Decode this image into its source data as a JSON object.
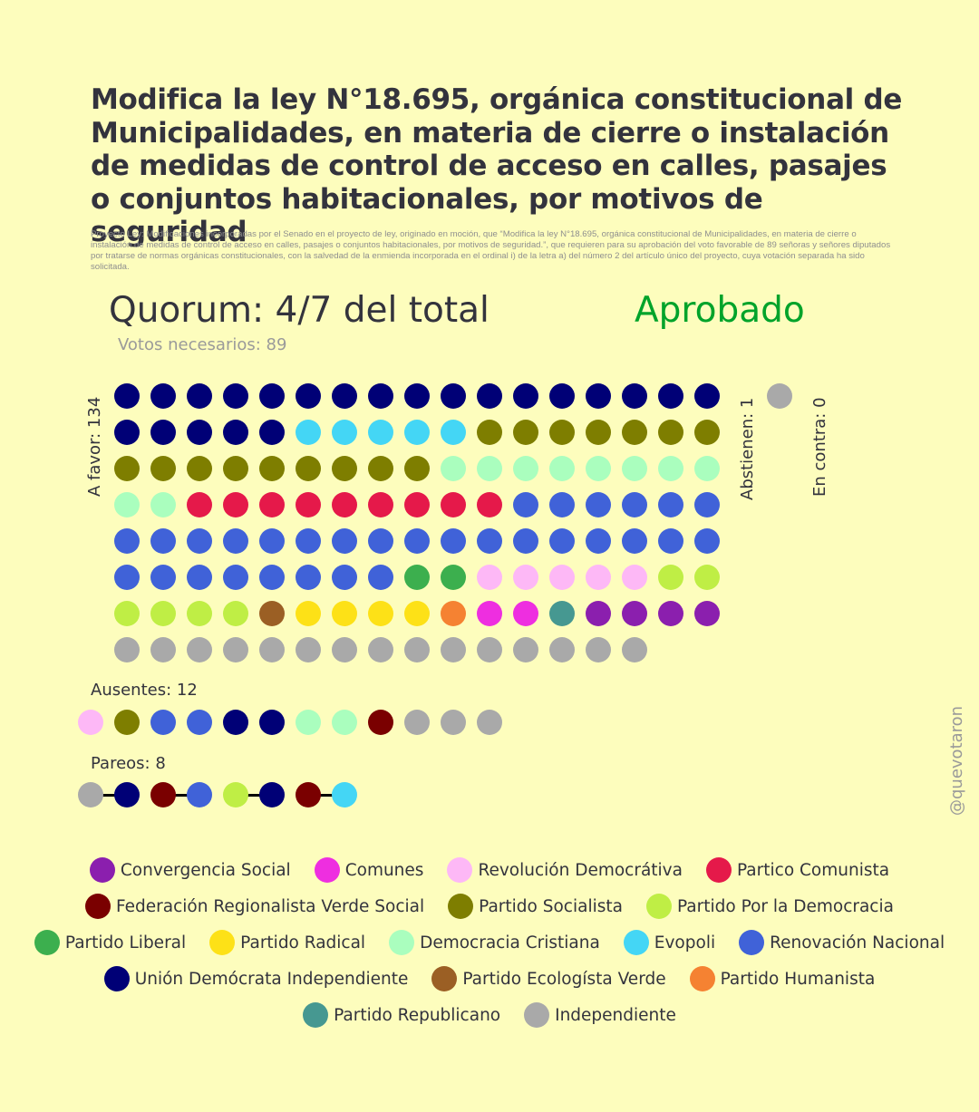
{
  "title": "Modifica la ley N°18.695, orgánica constitucional de Municipalidades, en materia de cierre o instalación de medidas de control de acceso en calles, pasajes o conjuntos habitacionales, por motivos de seguridad",
  "description": "Proyecto Ley: Modificaciones incorporadas por el Senado en el proyecto de ley, originado en moción, que “Modifica la ley N°18.695, orgánica constitucional de Municipalidades, en materia de cierre o instalación de medidas de control de acceso en calles, pasajes o conjuntos habitacionales, por motivos de seguridad.”, que requieren para su aprobación del voto favorable de 89 señoras y señores diputados por tratarse de normas orgánicas constitucionales, con la salvedad de la enmienda incorporada en el ordinal i) de la letra a) del número 2 del artículo único del proyecto, cuya votación separada ha sido solicitada.",
  "quorum": "Quorum: 4/7 del total",
  "result": "Aprobado",
  "result_color": "#00a32a",
  "needed": "Votos necesarios: 89",
  "labels": {
    "favor": "A favor: 134",
    "abstain": "Abstienen: 1",
    "against": "En contra: 0",
    "absent": "Ausentes: 12",
    "pairs": "Pareos: 8"
  },
  "watermark": "@quevotaron",
  "colors": {
    "Convergencia Social": "#8b1fae",
    "Comunes": "#ee2ee0",
    "Revolución Democrátiva": "#fdb8f6",
    "Partico Comunista": "#e5194a",
    "Federación Regionalista Verde Social": "#7a0000",
    "Partido Socialista": "#7e7e00",
    "Partido Por la Democracia": "#bfee45",
    "Partido Liberal": "#3caf4e",
    "Partido Radical": "#fde117",
    "Democracia Cristiana": "#aafebe",
    "Evopoli": "#44d6f5",
    "Renovación Nacional": "#4062d8",
    "Unión Demócrata Independiente": "#000076",
    "Partido Ecologísta Verde": "#9b5f24",
    "Partido Humanista": "#f58232",
    "Partido Republicano": "#469891",
    "Independiente": "#a9a9a9"
  },
  "votes": {
    "favor": [
      [
        "Unión Demócrata Independiente",
        22
      ],
      [
        "Evopoli",
        5
      ],
      [
        "Partido Socialista",
        16
      ],
      [
        "Democracia Cristiana",
        10
      ],
      [
        "Partico Comunista",
        9
      ],
      [
        "Renovación Nacional",
        31
      ],
      [
        "Partido Liberal",
        2
      ],
      [
        "Revolución Democrátiva",
        5
      ],
      [
        "Partido Por la Democracia",
        6
      ],
      [
        "Partido Ecologísta Verde",
        1
      ],
      [
        "Partido Radical",
        4
      ],
      [
        "Partido Humanista",
        1
      ],
      [
        "Comunes",
        2
      ],
      [
        "Partido Republicano",
        1
      ],
      [
        "Convergencia Social",
        4
      ],
      [
        "Independiente",
        15
      ]
    ],
    "abstain": [
      [
        "Independiente",
        1
      ]
    ],
    "against": [],
    "absent": [
      "Revolución Democrátiva",
      "Partido Socialista",
      "Renovación Nacional",
      "Renovación Nacional",
      "Unión Demócrata Independiente",
      "Unión Demócrata Independiente",
      "Democracia Cristiana",
      "Democracia Cristiana",
      "Federación Regionalista Verde Social",
      "Independiente",
      "Independiente",
      "Independiente"
    ],
    "pairs": [
      [
        "Independiente",
        "Unión Demócrata Independiente"
      ],
      [
        "Federación Regionalista Verde Social",
        "Renovación Nacional"
      ],
      [
        "Partido Por la Democracia",
        "Unión Demócrata Independiente"
      ],
      [
        "Federación Regionalista Verde Social",
        "Evopoli"
      ]
    ]
  },
  "legend": [
    [
      "Convergencia Social",
      "Comunes",
      "Revolución Democrátiva",
      "Partico Comunista"
    ],
    [
      "Federación Regionalista Verde Social",
      "Partido Socialista",
      "Partido Por la Democracia"
    ],
    [
      "Partido Liberal",
      "Partido Radical",
      "Democracia Cristiana",
      "Evopoli",
      "Renovación Nacional"
    ],
    [
      "Unión Demócrata Independiente",
      "Partido Ecologísta Verde",
      "Partido Humanista"
    ],
    [
      "Partido Republicano",
      "Independiente"
    ]
  ]
}
